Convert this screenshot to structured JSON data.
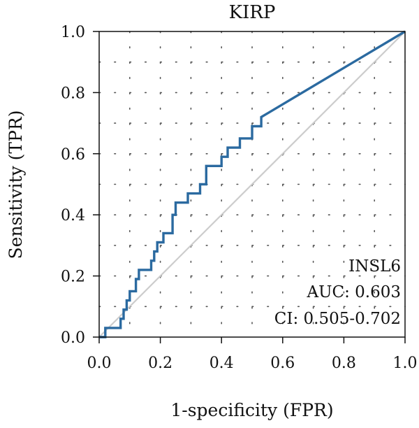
{
  "chart_data": {
    "type": "line",
    "title": "KIRP",
    "xlabel": "1-specificity (FPR)",
    "ylabel": "Sensitivity (TPR)",
    "xlim": [
      0,
      1
    ],
    "ylim": [
      0,
      1
    ],
    "xticks": [
      "0.0",
      "0.2",
      "0.4",
      "0.6",
      "0.8",
      "1.0"
    ],
    "yticks": [
      "0.0",
      "0.2",
      "0.4",
      "0.6",
      "0.8",
      "1.0"
    ],
    "grid": true,
    "series": [
      {
        "color": "#2b6aa0",
        "x": [
          0.0,
          0.02,
          0.02,
          0.07,
          0.07,
          0.08,
          0.08,
          0.09,
          0.09,
          0.1,
          0.1,
          0.12,
          0.12,
          0.13,
          0.13,
          0.17,
          0.17,
          0.18,
          0.18,
          0.19,
          0.19,
          0.21,
          0.21,
          0.24,
          0.24,
          0.25,
          0.25,
          0.29,
          0.29,
          0.33,
          0.33,
          0.35,
          0.35,
          0.4,
          0.4,
          0.42,
          0.42,
          0.46,
          0.46,
          0.5,
          0.5,
          0.53,
          0.53,
          1.0
        ],
        "y": [
          0.0,
          0.0,
          0.03,
          0.03,
          0.06,
          0.06,
          0.09,
          0.09,
          0.12,
          0.12,
          0.15,
          0.15,
          0.19,
          0.19,
          0.22,
          0.22,
          0.25,
          0.25,
          0.28,
          0.28,
          0.31,
          0.31,
          0.34,
          0.34,
          0.4,
          0.4,
          0.44,
          0.44,
          0.47,
          0.47,
          0.5,
          0.5,
          0.56,
          0.56,
          0.59,
          0.59,
          0.62,
          0.62,
          0.65,
          0.65,
          0.69,
          0.69,
          0.72,
          1.0
        ]
      },
      {
        "color": "#cccccc",
        "x": [
          0,
          1
        ],
        "y": [
          0,
          1
        ]
      }
    ],
    "annotations": [
      "INSL6",
      "AUC: 0.603",
      "CI: 0.505-0.702"
    ]
  }
}
